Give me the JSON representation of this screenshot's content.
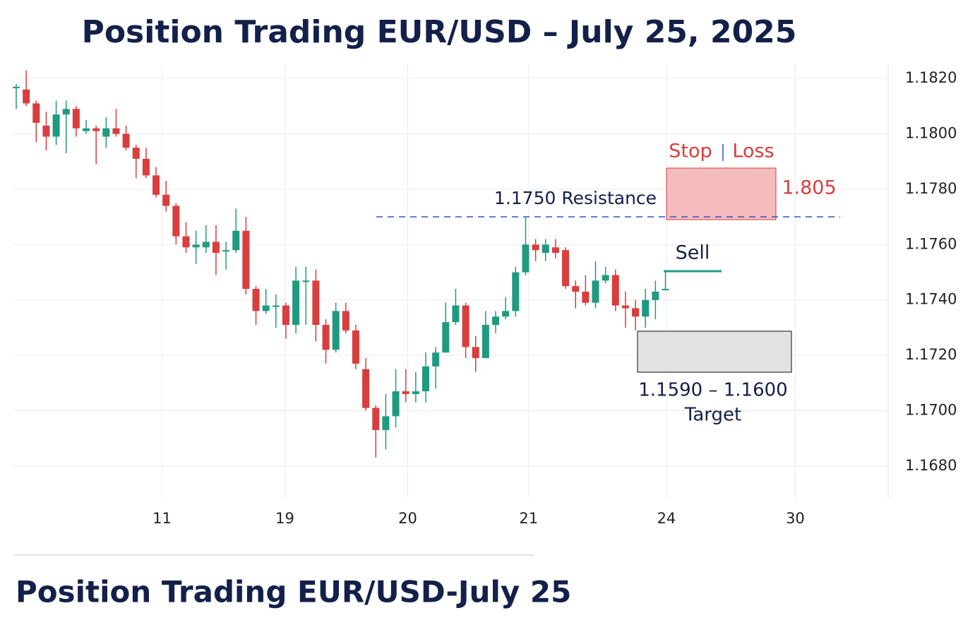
{
  "chart_data": {
    "type": "candlestick",
    "title": "Position Trading EUR/USD – July 25, 2025",
    "footer": "Position Trading EUR/USD-July 25",
    "x": [
      0,
      1,
      2,
      3,
      4,
      5,
      6,
      7,
      8,
      9,
      10,
      11,
      12,
      13,
      14,
      15,
      16,
      17,
      18,
      19,
      20,
      21,
      22,
      23,
      24,
      25,
      26,
      27,
      28,
      29,
      30,
      31,
      32,
      33,
      34,
      35,
      36,
      37,
      38,
      39,
      40,
      41,
      42,
      43,
      44,
      45,
      46,
      47,
      48,
      49,
      50,
      51,
      52,
      53,
      54,
      55,
      56,
      57,
      58,
      59,
      60,
      61,
      62,
      63,
      64,
      65
    ],
    "open": [
      1.1817,
      1.1816,
      1.1811,
      1.1803,
      1.1799,
      1.1807,
      1.1809,
      1.1801,
      1.1802,
      1.1799,
      1.1802,
      1.18,
      1.1795,
      1.1791,
      1.1785,
      1.1778,
      1.1774,
      1.1763,
      1.1759,
      1.1759,
      1.1761,
      1.1758,
      1.1758,
      1.1765,
      1.1744,
      1.1736,
      1.1738,
      1.1738,
      1.1731,
      1.1747,
      1.1747,
      1.1731,
      1.1722,
      1.1736,
      1.1729,
      1.1715,
      1.1701,
      1.1693,
      1.1698,
      1.1707,
      1.1706,
      1.1707,
      1.1716,
      1.1721,
      1.1732,
      1.1738,
      1.1723,
      1.1719,
      1.1731,
      1.1734,
      1.1736,
      1.175,
      1.176,
      1.1757,
      1.1759,
      1.1758,
      1.1745,
      1.1743,
      1.1739,
      1.1747,
      1.1749,
      1.1738,
      1.1737,
      1.1734,
      1.174,
      1.1744
    ],
    "high": [
      1.1818,
      1.1823,
      1.1812,
      1.1808,
      1.1812,
      1.1812,
      1.181,
      1.1805,
      1.1803,
      1.1806,
      1.1809,
      1.1803,
      1.1796,
      1.1795,
      1.1788,
      1.1783,
      1.1775,
      1.1768,
      1.1765,
      1.1767,
      1.1767,
      1.1761,
      1.1773,
      1.177,
      1.1745,
      1.1744,
      1.1742,
      1.1739,
      1.1752,
      1.1752,
      1.1751,
      1.1733,
      1.1739,
      1.1739,
      1.1731,
      1.1719,
      1.1702,
      1.1706,
      1.1715,
      1.1715,
      1.1714,
      1.1721,
      1.1723,
      1.1739,
      1.1744,
      1.1739,
      1.1727,
      1.1736,
      1.1736,
      1.1741,
      1.1752,
      1.177,
      1.1762,
      1.1762,
      1.1762,
      1.1759,
      1.1747,
      1.1749,
      1.1754,
      1.1752,
      1.1751,
      1.1743,
      1.174,
      1.1744,
      1.1747,
      1.175
    ],
    "low": [
      1.1809,
      1.181,
      1.1797,
      1.1794,
      1.1796,
      1.1793,
      1.1799,
      1.18,
      1.1789,
      1.1795,
      1.1799,
      1.1794,
      1.1784,
      1.1784,
      1.1777,
      1.1772,
      1.176,
      1.1757,
      1.1753,
      1.1757,
      1.1749,
      1.1751,
      1.1757,
      1.1742,
      1.1731,
      1.1735,
      1.173,
      1.1726,
      1.1728,
      1.1731,
      1.1725,
      1.1717,
      1.1721,
      1.1728,
      1.1715,
      1.17,
      1.1683,
      1.1686,
      1.1694,
      1.1703,
      1.1703,
      1.1703,
      1.1708,
      1.1721,
      1.1731,
      1.1719,
      1.1714,
      1.1719,
      1.1728,
      1.1733,
      1.1734,
      1.1749,
      1.1754,
      1.1754,
      1.1755,
      1.1744,
      1.1737,
      1.1738,
      1.1737,
      1.1746,
      1.1736,
      1.173,
      1.1729,
      1.173,
      1.1733,
      1.1744
    ],
    "close": [
      1.1817,
      1.1811,
      1.1804,
      1.1799,
      1.1807,
      1.1809,
      1.1802,
      1.1802,
      1.1801,
      1.1802,
      1.18,
      1.1795,
      1.1791,
      1.1785,
      1.1778,
      1.1774,
      1.1763,
      1.1759,
      1.176,
      1.1761,
      1.1757,
      1.1758,
      1.1765,
      1.1744,
      1.1736,
      1.1738,
      1.1738,
      1.1731,
      1.1747,
      1.1747,
      1.1731,
      1.1722,
      1.1736,
      1.1729,
      1.1717,
      1.1701,
      1.1693,
      1.1698,
      1.1707,
      1.1706,
      1.1707,
      1.1716,
      1.1721,
      1.1732,
      1.1738,
      1.1723,
      1.1719,
      1.1731,
      1.1734,
      1.1736,
      1.175,
      1.176,
      1.1758,
      1.176,
      1.1757,
      1.1745,
      1.1743,
      1.1739,
      1.1747,
      1.1749,
      1.1738,
      1.1737,
      1.1734,
      1.174,
      1.1743,
      1.1744
    ],
    "up_color": "#1f9a80",
    "down_color": "#d93d3d",
    "xlim": [
      -0.35,
      87.3
    ],
    "xticks": [
      {
        "value": 14.6,
        "label": "11"
      },
      {
        "value": 26.9,
        "label": "19"
      },
      {
        "value": 39.2,
        "label": "20"
      },
      {
        "value": 51.3,
        "label": "21"
      },
      {
        "value": 65.1,
        "label": "24"
      },
      {
        "value": 78.0,
        "label": "30"
      }
    ],
    "ylim": [
      1.16685,
      1.18254
    ],
    "yticks": [
      {
        "value": 1.182,
        "label": "1.1820"
      },
      {
        "value": 1.18,
        "label": "1.1800"
      },
      {
        "value": 1.178,
        "label": "1.1780"
      },
      {
        "value": 1.176,
        "label": "1.1760"
      },
      {
        "value": 1.174,
        "label": "1.1740"
      },
      {
        "value": 1.172,
        "label": "1.1720"
      },
      {
        "value": 1.17,
        "label": "1.1700"
      },
      {
        "value": 1.168,
        "label": "1.1680"
      }
    ],
    "grid": true,
    "annotations": {
      "stop": "Stop",
      "loss": "Loss",
      "stop_level": "1.805",
      "resistance": "1.1750 Resistance",
      "sell": "Sell",
      "target_range": "1.1590 – 1.1600",
      "target": "Target"
    }
  }
}
